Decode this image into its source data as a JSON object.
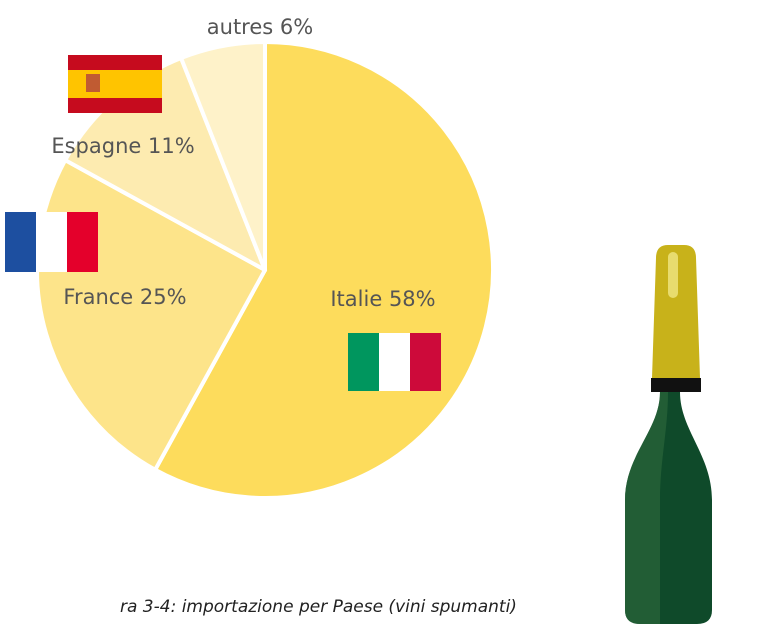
{
  "chart_data": {
    "type": "pie",
    "categories": [
      "Italie",
      "France",
      "Espagne",
      "autres"
    ],
    "values": [
      58,
      25,
      11,
      6
    ],
    "value_labels": [
      "58%",
      "25%",
      "11%",
      "6%"
    ],
    "colors": [
      "#fddc5c",
      "#fde48a",
      "#fdebb0",
      "#fef2c9"
    ],
    "caption": "ra 3-4: importazione per Paese (vini spumanti)"
  }
}
